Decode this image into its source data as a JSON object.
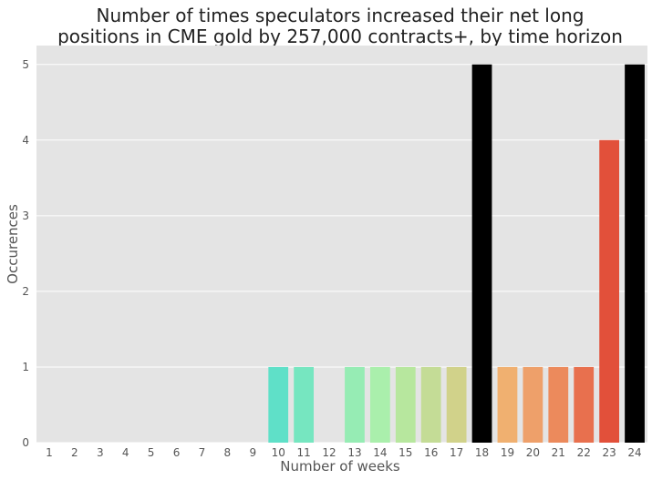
{
  "chart_data": {
    "type": "bar",
    "title_lines": [
      "Number of times speculators increased their net long",
      "positions in CME gold by 257,000 contracts+, by time horizon"
    ],
    "xlabel": "Number of weeks",
    "ylabel": "Occurences",
    "categories": [
      "1",
      "2",
      "3",
      "4",
      "5",
      "6",
      "7",
      "8",
      "9",
      "10",
      "11",
      "12",
      "13",
      "14",
      "15",
      "16",
      "17",
      "18",
      "19",
      "20",
      "21",
      "22",
      "23",
      "24"
    ],
    "values": [
      0,
      0,
      0,
      0,
      0,
      0,
      0,
      0,
      0,
      1,
      1,
      0,
      1,
      1,
      1,
      1,
      1,
      5,
      1,
      1,
      1,
      1,
      4,
      5
    ],
    "colors": [
      "#1f8cc6",
      "#25a0c4",
      "#2cb4c0",
      "#34c6bd",
      "#41d3c2",
      "#4fdcc0",
      "#58dfbf",
      "#5fe0c3",
      "#66e2c7",
      "#5fe0c8",
      "#76e6c0",
      "#8deab6",
      "#96ecb4",
      "#aaefac",
      "#b7e79e",
      "#c4dc96",
      "#d1d28a",
      "#000000",
      "#f0b070",
      "#eea06a",
      "#ec8a5c",
      "#e8704e",
      "#e2503a",
      "#000000"
    ],
    "ylim": [
      0,
      5.25
    ],
    "yticks": [
      0,
      1,
      2,
      3,
      4,
      5
    ],
    "grid": true,
    "style": {
      "background": "#e4e4e4",
      "grid_color": "#ffffff",
      "text_color": "#555555",
      "title_color": "#222222"
    }
  }
}
